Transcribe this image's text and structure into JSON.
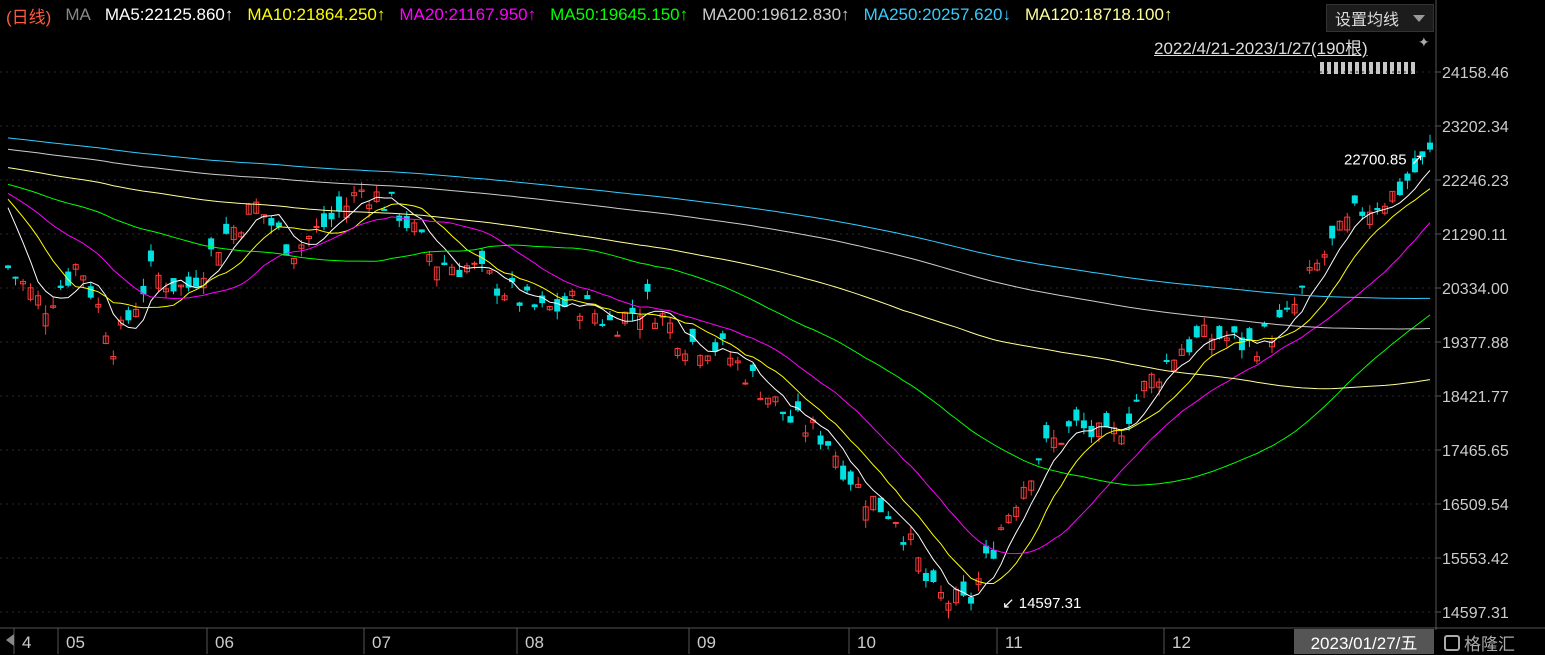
{
  "header": {
    "period_label": "(日线)",
    "indicator_label": "MA",
    "ma_items": [
      {
        "text": "MA5:22125.860↑",
        "color": "#ffffff"
      },
      {
        "text": "MA10:21864.250↑",
        "color": "#ffff00"
      },
      {
        "text": "MA20:21167.950↑",
        "color": "#ff00ff"
      },
      {
        "text": "MA50:19645.150↑",
        "color": "#00ff00"
      },
      {
        "text": "MA200:19612.830↑",
        "color": "#cccccc"
      },
      {
        "text": "MA250:20257.620↓",
        "color": "#33ccff"
      },
      {
        "text": "MA120:18718.100↑",
        "color": "#ffff99"
      }
    ],
    "settings_label": "设置均线",
    "date_range": "2022/4/21-2023/1/27(190根)"
  },
  "footer": {
    "crosshair_date": "2023/01/27/五",
    "logo_text": "格隆汇"
  },
  "colors": {
    "up": "#ff3b3b",
    "down": "#00e0e0",
    "background": "#000000",
    "grid": "#2a2a2a"
  },
  "chart_data": {
    "type": "candlestick",
    "ylim": [
      14597.31,
      24158.46
    ],
    "y_ticks": [
      "24158.46",
      "23202.34",
      "22246.23",
      "21290.11",
      "20334.00",
      "19377.88",
      "18421.77",
      "17465.65",
      "16509.54",
      "15553.42",
      "14597.31"
    ],
    "x_labels": [
      "4",
      "05",
      "06",
      "07",
      "08",
      "09",
      "10",
      "11",
      "12"
    ],
    "annotations": {
      "high": "22700.85",
      "low": "14597.31"
    },
    "ohlc_anchors": [
      {
        "date": "2022-04-21",
        "close": 20700
      },
      {
        "date": "2022-04-29",
        "close": 20000
      },
      {
        "date": "2022-05-05",
        "close": 20800
      },
      {
        "date": "2022-05-12",
        "close": 19300
      },
      {
        "date": "2022-05-20",
        "close": 20600
      },
      {
        "date": "2022-05-27",
        "close": 20300
      },
      {
        "date": "2022-06-03",
        "close": 21200
      },
      {
        "date": "2022-06-09",
        "close": 21800
      },
      {
        "date": "2022-06-16",
        "close": 21000
      },
      {
        "date": "2022-06-24",
        "close": 21500
      },
      {
        "date": "2022-06-28",
        "close": 22100
      },
      {
        "date": "2022-07-05",
        "close": 21700
      },
      {
        "date": "2022-07-12",
        "close": 20800
      },
      {
        "date": "2022-07-20",
        "close": 20700
      },
      {
        "date": "2022-07-28",
        "close": 20300
      },
      {
        "date": "2022-08-04",
        "close": 19900
      },
      {
        "date": "2022-08-12",
        "close": 20100
      },
      {
        "date": "2022-08-19",
        "close": 19700
      },
      {
        "date": "2022-08-26",
        "close": 20100
      },
      {
        "date": "2022-09-02",
        "close": 19400
      },
      {
        "date": "2022-09-09",
        "close": 19300
      },
      {
        "date": "2022-09-16",
        "close": 18700
      },
      {
        "date": "2022-09-23",
        "close": 18000
      },
      {
        "date": "2022-10-06",
        "close": 17700
      },
      {
        "date": "2022-10-13",
        "close": 16700
      },
      {
        "date": "2022-10-20",
        "close": 16300
      },
      {
        "date": "2022-10-24",
        "close": 14900
      },
      {
        "date": "2022-10-31",
        "close": 14700
      },
      {
        "date": "2022-11-04",
        "close": 16200
      },
      {
        "date": "2022-11-11",
        "close": 17400
      },
      {
        "date": "2022-11-18",
        "close": 17900
      },
      {
        "date": "2022-11-25",
        "close": 17600
      },
      {
        "date": "2022-11-30",
        "close": 18600
      },
      {
        "date": "2022-12-07",
        "close": 19300
      },
      {
        "date": "2022-12-15",
        "close": 19500
      },
      {
        "date": "2022-12-22",
        "close": 19300
      },
      {
        "date": "2022-12-30",
        "close": 19800
      },
      {
        "date": "2023-01-06",
        "close": 20900
      },
      {
        "date": "2023-01-13",
        "close": 21700
      },
      {
        "date": "2023-01-20",
        "close": 22000
      },
      {
        "date": "2023-01-27",
        "close": 22700
      }
    ],
    "moving_averages": [
      {
        "name": "MA5",
        "color": "#ffffff"
      },
      {
        "name": "MA10",
        "color": "#ffff00"
      },
      {
        "name": "MA20",
        "color": "#ff00ff"
      },
      {
        "name": "MA50",
        "color": "#00ff00"
      },
      {
        "name": "MA120",
        "color": "#ffff99"
      },
      {
        "name": "MA200",
        "color": "#cccccc"
      },
      {
        "name": "MA250",
        "color": "#33ccff"
      }
    ]
  }
}
